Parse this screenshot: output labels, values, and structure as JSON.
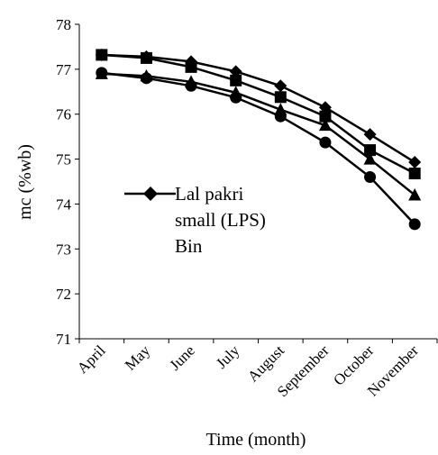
{
  "chart_data": {
    "type": "line",
    "categories": [
      "April",
      "May",
      "June",
      "July",
      "August",
      "September",
      "October",
      "November"
    ],
    "xlabel": "Time (month)",
    "ylabel": "mc (%wb)",
    "ylim": [
      71,
      78
    ],
    "yticks": [
      71,
      72,
      73,
      74,
      75,
      76,
      77,
      78
    ],
    "grid": false,
    "legend_position": "center-left",
    "legend_text": [
      "Lal pakri",
      "small (LPS)",
      "Bin"
    ],
    "series": [
      {
        "name": "Lal pakri small (LPS) Bin",
        "marker": "diamond",
        "values": [
          77.32,
          77.28,
          77.17,
          76.95,
          76.63,
          76.15,
          75.55,
          74.93
        ]
      },
      {
        "marker": "square",
        "values": [
          77.32,
          77.25,
          77.05,
          76.75,
          76.38,
          75.95,
          75.2,
          74.68
        ]
      },
      {
        "marker": "triangle",
        "values": [
          76.9,
          76.85,
          76.72,
          76.48,
          76.1,
          75.75,
          75.0,
          74.2
        ]
      },
      {
        "marker": "circle",
        "values": [
          76.92,
          76.8,
          76.63,
          76.37,
          75.95,
          75.37,
          74.6,
          73.55
        ]
      }
    ],
    "colors": {
      "line": "#000000",
      "marker": "#000000",
      "axis": "#000000"
    }
  }
}
